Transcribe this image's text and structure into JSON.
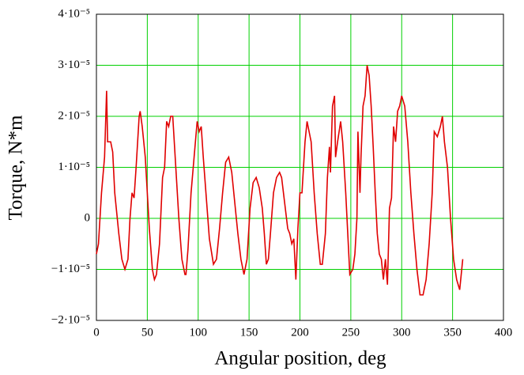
{
  "chart_data": {
    "type": "line",
    "x_label": "Angular position, deg",
    "y_label": "Torque, N*m",
    "xlim": [
      0,
      400
    ],
    "xticks": [
      0,
      50,
      100,
      150,
      200,
      250,
      300,
      350,
      400
    ],
    "ylim": [
      -2e-05,
      4e-05
    ],
    "yticks": [
      {
        "value": -2e-05,
        "label": "−2·10⁻⁵"
      },
      {
        "value": -1e-05,
        "label": "−1·10⁻⁵"
      },
      0,
      {
        "value": 1e-05,
        "label": "1·10⁻⁵"
      },
      {
        "value": 2e-05,
        "label": "2·10⁻⁵"
      },
      {
        "value": 3e-05,
        "label": "3·10⁻⁵"
      },
      {
        "value": 4e-05,
        "label": "4·10⁻⁵"
      }
    ],
    "grid": true,
    "grid_color": "#00d000",
    "x": [
      0,
      2,
      5,
      8,
      10,
      11,
      14,
      16,
      18,
      22,
      25,
      28,
      31,
      33,
      35,
      37,
      39,
      42,
      43,
      45,
      48,
      50,
      52,
      55,
      57,
      59,
      62,
      65,
      67,
      69,
      71,
      73,
      75,
      78,
      81,
      84,
      87,
      88,
      90,
      93,
      96,
      99,
      101,
      103,
      105,
      108,
      111,
      115,
      118,
      121,
      124,
      127,
      130,
      133,
      136,
      139,
      142,
      145,
      148,
      151,
      154,
      157,
      160,
      163,
      165,
      167,
      169,
      171,
      174,
      177,
      180,
      182,
      185,
      188,
      190,
      192,
      194,
      196,
      198,
      200,
      202,
      205,
      207,
      209,
      211,
      214,
      217,
      220,
      222,
      225,
      227,
      229,
      230,
      232,
      234,
      235,
      237,
      240,
      242,
      245,
      247,
      249,
      252,
      254,
      256,
      257,
      259,
      260,
      262,
      264,
      266,
      268,
      270,
      272,
      274,
      276,
      278,
      280,
      282,
      284,
      286,
      288,
      290,
      292,
      294,
      296,
      298,
      300,
      303,
      306,
      309,
      312,
      315,
      318,
      321,
      324,
      327,
      330,
      332,
      335,
      338,
      340,
      342,
      345,
      348,
      351,
      354,
      357,
      360
    ],
    "series": [
      {
        "color": "#e00000",
        "values": [
          -7e-06,
          -5e-06,
          5e-06,
          1.2e-05,
          2.5e-05,
          1.5e-05,
          1.5e-05,
          1.3e-05,
          5e-06,
          -3e-06,
          -8e-06,
          -1e-05,
          -8e-06,
          0,
          5e-06,
          4e-06,
          1e-05,
          2e-05,
          2.1e-05,
          1.8e-05,
          1.2e-05,
          5e-06,
          -2e-06,
          -1e-05,
          -1.2e-05,
          -1.1e-05,
          -5e-06,
          8e-06,
          1e-05,
          1.9e-05,
          1.8e-05,
          2e-05,
          2e-05,
          1e-05,
          0,
          -8e-06,
          -1.1e-05,
          -1.1e-05,
          -6e-06,
          5e-06,
          1.2e-05,
          1.9e-05,
          1.7e-05,
          1.8e-05,
          1.2e-05,
          4e-06,
          -4e-06,
          -9e-06,
          -8e-06,
          -2e-06,
          5e-06,
          1.1e-05,
          1.2e-05,
          9e-06,
          3e-06,
          -3e-06,
          -8e-06,
          -1.1e-05,
          -8e-06,
          2e-06,
          7e-06,
          8e-06,
          6e-06,
          2e-06,
          -3e-06,
          -9e-06,
          -8e-06,
          -3e-06,
          5e-06,
          8e-06,
          9e-06,
          8e-06,
          3e-06,
          -2e-06,
          -3e-06,
          -5e-06,
          -4e-06,
          -1.2e-05,
          -2e-06,
          5e-06,
          5e-06,
          1.5e-05,
          1.9e-05,
          1.7e-05,
          1.5e-05,
          5e-06,
          -3e-06,
          -9e-06,
          -9e-06,
          -3e-06,
          8e-06,
          1.4e-05,
          9e-06,
          2.2e-05,
          2.4e-05,
          1.2e-05,
          1.5e-05,
          1.9e-05,
          1.5e-05,
          5e-06,
          -3e-06,
          -1.1e-05,
          -1e-05,
          -7e-06,
          0,
          1.7e-05,
          5e-06,
          1.2e-05,
          2.2e-05,
          2.4e-05,
          3e-05,
          2.8e-05,
          2.2e-05,
          1.4e-05,
          5e-06,
          -3e-06,
          -7e-06,
          -8e-06,
          -1.2e-05,
          -8e-06,
          -1.3e-05,
          2e-06,
          4e-06,
          1.8e-05,
          1.5e-05,
          2.1e-05,
          2.2e-05,
          2.4e-05,
          2.2e-05,
          1.5e-05,
          5e-06,
          -3e-06,
          -1e-05,
          -1.5e-05,
          -1.5e-05,
          -1.2e-05,
          -5e-06,
          5e-06,
          1.7e-05,
          1.6e-05,
          1.8e-05,
          2e-05,
          1.5e-05,
          1e-05,
          0,
          -8e-06,
          -1.2e-05,
          -1.4e-05,
          -8e-06
        ]
      }
    ]
  }
}
